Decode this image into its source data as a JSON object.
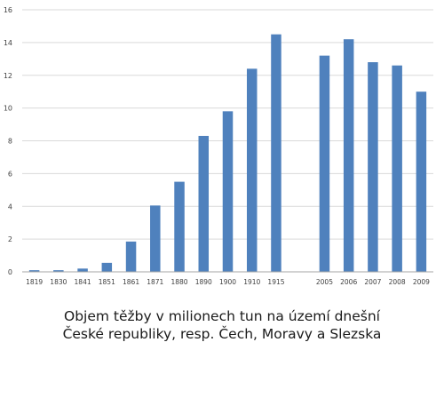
{
  "chart_data": {
    "type": "bar",
    "categories": [
      "1819",
      "1830",
      "1841",
      "1851",
      "1861",
      "1871",
      "1880",
      "1890",
      "1900",
      "1910",
      "1915",
      "",
      "2005",
      "2006",
      "2007",
      "2008",
      "2009"
    ],
    "values": [
      0.1,
      0.1,
      0.2,
      0.55,
      1.85,
      4.05,
      5.5,
      8.3,
      9.8,
      12.4,
      14.5,
      null,
      13.2,
      14.2,
      12.8,
      12.6,
      11.0
    ],
    "ylim": [
      0,
      16
    ],
    "yticks": [
      0,
      2,
      4,
      6,
      8,
      10,
      12,
      14,
      16
    ],
    "grid": true,
    "legend": "none",
    "bar_color": "#4f81bd",
    "grid_color": "#d9d9d9",
    "axis_color": "#a6a6a6"
  },
  "caption": {
    "line1": "Objem těžby v milionech tun na území dnešní",
    "line2": "České republiky, resp. Čech, Moravy a Slezska"
  }
}
